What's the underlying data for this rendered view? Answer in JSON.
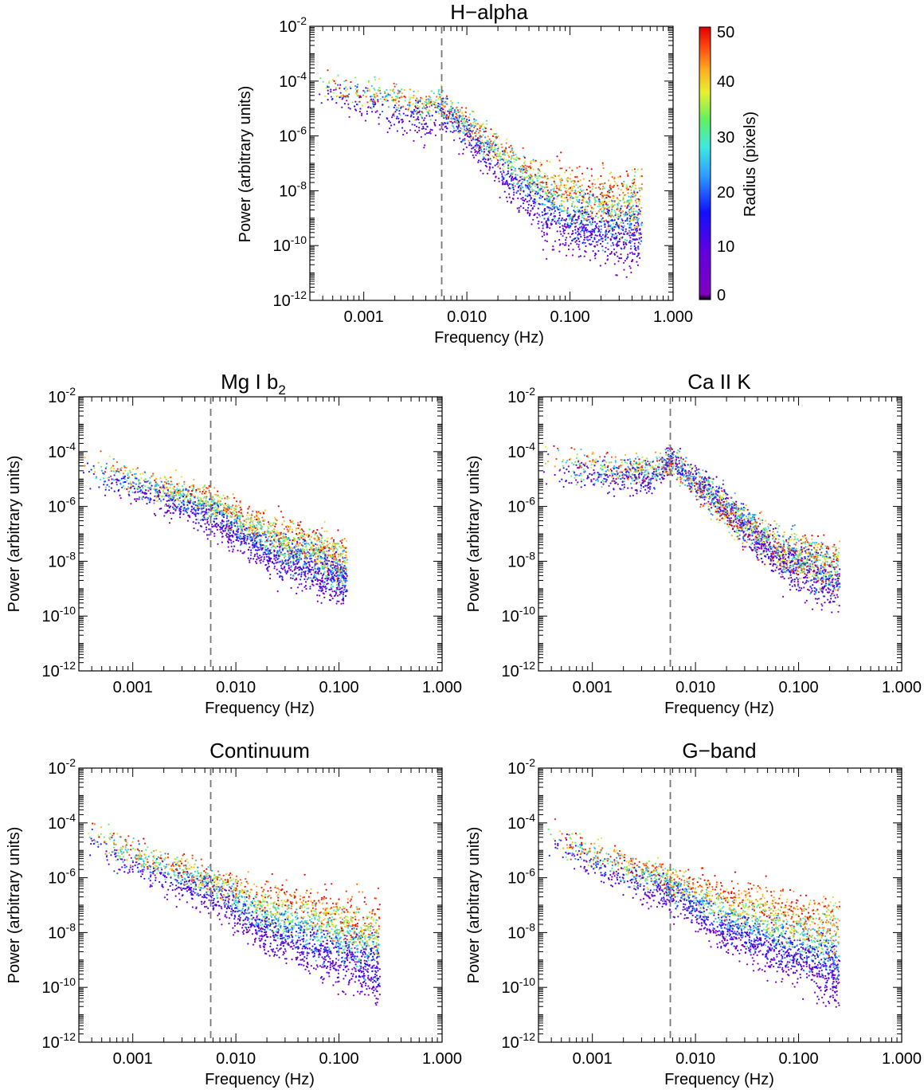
{
  "figure": {
    "colorbar": {
      "label": "Radius (pixels)",
      "ticks": [
        "0",
        "10",
        "20",
        "30",
        "40",
        "50"
      ],
      "range": [
        0,
        50
      ]
    }
  },
  "chart_data": [
    {
      "type": "scatter",
      "id": "halpha",
      "title": "H−alpha",
      "title_sub": "",
      "xlabel": "Frequency (Hz)",
      "ylabel": "Power (arbitrary units)",
      "x_scale": "log",
      "y_scale": "log",
      "xlim": [
        0.0003,
        1.0
      ],
      "ylim": [
        1e-12,
        0.01
      ],
      "x_ticks": [
        0.001,
        0.01,
        0.1,
        1.0
      ],
      "x_tick_labels": [
        "0.001",
        "0.010",
        "0.100",
        "1.000"
      ],
      "y_tick_exps": [
        -12,
        -10,
        -8,
        -6,
        -4,
        -2
      ],
      "vline": 0.0057,
      "fmax": 0.5,
      "series_by_radius": [
        {
          "radius": 0,
          "x": [
            0.0004,
            0.001,
            0.004,
            0.0057,
            0.02,
            0.06,
            0.2,
            0.5
          ],
          "y": [
            3e-05,
            8e-06,
            1e-06,
            4e-06,
            3e-08,
            3e-10,
            1e-10,
            1e-10
          ]
        },
        {
          "radius": 25,
          "x": [
            0.0004,
            0.001,
            0.004,
            0.0057,
            0.02,
            0.06,
            0.2,
            0.5
          ],
          "y": [
            8e-05,
            3e-05,
            1.2e-05,
            1.5e-05,
            2e-07,
            5e-09,
            1e-09,
            1e-09
          ]
        },
        {
          "radius": 50,
          "x": [
            0.0004,
            0.001,
            0.004,
            0.0057,
            0.02,
            0.06,
            0.2,
            0.5
          ],
          "y": [
            0.0001,
            3e-05,
            1.5e-05,
            1.5e-05,
            4e-07,
            3e-08,
            1e-08,
            1e-08
          ]
        }
      ]
    },
    {
      "type": "scatter",
      "id": "mg",
      "title": "Mg I b",
      "title_sub": "2",
      "xlabel": "Frequency (Hz)",
      "ylabel": "Power (arbitrary units)",
      "x_scale": "log",
      "y_scale": "log",
      "xlim": [
        0.0003,
        1.0
      ],
      "ylim": [
        1e-12,
        0.01
      ],
      "x_ticks": [
        0.001,
        0.01,
        0.1,
        1.0
      ],
      "x_tick_labels": [
        "0.001",
        "0.010",
        "0.100",
        "1.000"
      ],
      "y_tick_exps": [
        -12,
        -10,
        -8,
        -6,
        -4,
        -2
      ],
      "vline": 0.0057,
      "fmax": 0.12,
      "series_by_radius": [
        {
          "radius": 0,
          "x": [
            0.0003,
            0.001,
            0.0057,
            0.02,
            0.12
          ],
          "y": [
            2e-05,
            3e-06,
            2e-07,
            1e-08,
            1e-09
          ]
        },
        {
          "radius": 25,
          "x": [
            0.0003,
            0.001,
            0.0057,
            0.02,
            0.12
          ],
          "y": [
            4e-05,
            8e-06,
            1e-06,
            5e-08,
            4e-09
          ]
        },
        {
          "radius": 50,
          "x": [
            0.0003,
            0.001,
            0.0057,
            0.02,
            0.12
          ],
          "y": [
            6e-05,
            1e-05,
            2e-06,
            2e-07,
            2e-08
          ]
        }
      ]
    },
    {
      "type": "scatter",
      "id": "ca",
      "title": "Ca II K",
      "title_sub": "",
      "xlabel": "Frequency (Hz)",
      "ylabel": "Power (arbitrary units)",
      "x_scale": "log",
      "y_scale": "log",
      "xlim": [
        0.0003,
        1.0
      ],
      "ylim": [
        1e-12,
        0.01
      ],
      "x_ticks": [
        0.001,
        0.01,
        0.1,
        1.0
      ],
      "x_tick_labels": [
        "0.001",
        "0.010",
        "0.100",
        "1.000"
      ],
      "y_tick_exps": [
        -12,
        -10,
        -8,
        -6,
        -4,
        -2
      ],
      "vline": 0.0057,
      "fmax": 0.25,
      "series_by_radius": [
        {
          "radius": 0,
          "x": [
            0.0004,
            0.001,
            0.004,
            0.0057,
            0.02,
            0.06,
            0.25
          ],
          "y": [
            1e-05,
            1e-05,
            5e-06,
            6e-05,
            1e-06,
            1e-08,
            5e-10
          ]
        },
        {
          "radius": 25,
          "x": [
            0.0004,
            0.001,
            0.004,
            0.0057,
            0.02,
            0.06,
            0.25
          ],
          "y": [
            5e-05,
            2e-05,
            2e-05,
            5e-05,
            1e-06,
            3e-08,
            3e-09
          ]
        },
        {
          "radius": 50,
          "x": [
            0.0004,
            0.001,
            0.004,
            0.0057,
            0.02,
            0.06,
            0.25
          ],
          "y": [
            8e-05,
            3e-05,
            2e-05,
            4e-05,
            5e-07,
            3e-08,
            1e-08
          ]
        }
      ]
    },
    {
      "type": "scatter",
      "id": "cont",
      "title": "Continuum",
      "title_sub": "",
      "xlabel": "Frequency (Hz)",
      "ylabel": "Power (arbitrary units)",
      "x_scale": "log",
      "y_scale": "log",
      "xlim": [
        0.0003,
        1.0
      ],
      "ylim": [
        1e-12,
        0.01
      ],
      "x_ticks": [
        0.001,
        0.01,
        0.1,
        1.0
      ],
      "x_tick_labels": [
        "0.001",
        "0.010",
        "0.100",
        "1.000"
      ],
      "y_tick_exps": [
        -12,
        -10,
        -8,
        -6,
        -4,
        -2
      ],
      "vline": 0.0057,
      "fmax": 0.25,
      "series_by_radius": [
        {
          "radius": 0,
          "x": [
            0.0003,
            0.001,
            0.0057,
            0.02,
            0.25
          ],
          "y": [
            2e-05,
            2e-06,
            1e-07,
            5e-09,
            1e-10
          ]
        },
        {
          "radius": 25,
          "x": [
            0.0003,
            0.001,
            0.0057,
            0.02,
            0.25
          ],
          "y": [
            5e-05,
            5e-06,
            6e-07,
            3e-08,
            2e-09
          ]
        },
        {
          "radius": 50,
          "x": [
            0.0003,
            0.001,
            0.0057,
            0.02,
            0.25
          ],
          "y": [
            0.0001,
            1e-05,
            1e-06,
            3e-07,
            3e-08
          ]
        }
      ]
    },
    {
      "type": "scatter",
      "id": "gband",
      "title": "G−band",
      "title_sub": "",
      "xlabel": "Frequency (Hz)",
      "ylabel": "Power (arbitrary units)",
      "x_scale": "log",
      "y_scale": "log",
      "xlim": [
        0.0003,
        1.0
      ],
      "ylim": [
        1e-12,
        0.01
      ],
      "x_ticks": [
        0.001,
        0.01,
        0.1,
        1.0
      ],
      "x_tick_labels": [
        "0.001",
        "0.010",
        "0.100",
        "1.000"
      ],
      "y_tick_exps": [
        -12,
        -10,
        -8,
        -6,
        -4,
        -2
      ],
      "vline": 0.0057,
      "fmax": 0.25,
      "series_by_radius": [
        {
          "radius": 0,
          "x": [
            0.0003,
            0.001,
            0.0057,
            0.02,
            0.25
          ],
          "y": [
            2e-05,
            2e-06,
            1e-07,
            5e-09,
            1e-10
          ]
        },
        {
          "radius": 25,
          "x": [
            0.0003,
            0.001,
            0.0057,
            0.02,
            0.25
          ],
          "y": [
            5e-05,
            5e-06,
            6e-07,
            3e-08,
            2e-09
          ]
        },
        {
          "radius": 50,
          "x": [
            0.0003,
            0.001,
            0.0057,
            0.02,
            0.25
          ],
          "y": [
            0.0001,
            1e-05,
            1e-06,
            3e-07,
            3e-08
          ]
        }
      ]
    }
  ]
}
